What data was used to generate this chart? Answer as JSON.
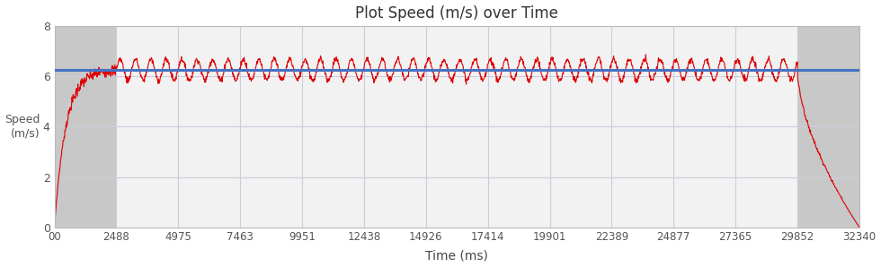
{
  "title": "Plot Speed (m/s) over Time",
  "xlabel": "Time (ms)",
  "ylabel": "Speed\n(m/s)",
  "xlim": [
    0,
    32340
  ],
  "ylim": [
    0,
    8
  ],
  "yticks": [
    0,
    2,
    4,
    6,
    8
  ],
  "xticks": [
    0,
    2488,
    4975,
    7463,
    9951,
    12438,
    14926,
    17414,
    19901,
    22389,
    24877,
    27365,
    29852,
    32340
  ],
  "xticklabels": [
    "00",
    "2488",
    "4975",
    "7463",
    "9951",
    "12438",
    "14926",
    "17414",
    "19901",
    "22389",
    "24877",
    "27365",
    "29852",
    "32340"
  ],
  "avg_speed": 6.27,
  "avg_line_color": "#4472C4",
  "speed_line_color": "#DD0000",
  "bg_color": "#FFFFFF",
  "gray_color": "#C8C8C8",
  "middle_bg_color": "#F2F2F2",
  "grid_color": "#CCCCDD",
  "accel_end": 2488,
  "decel_start": 29852,
  "total_end": 32340,
  "osc_amplitude": 0.42,
  "osc_period_ms": 620
}
